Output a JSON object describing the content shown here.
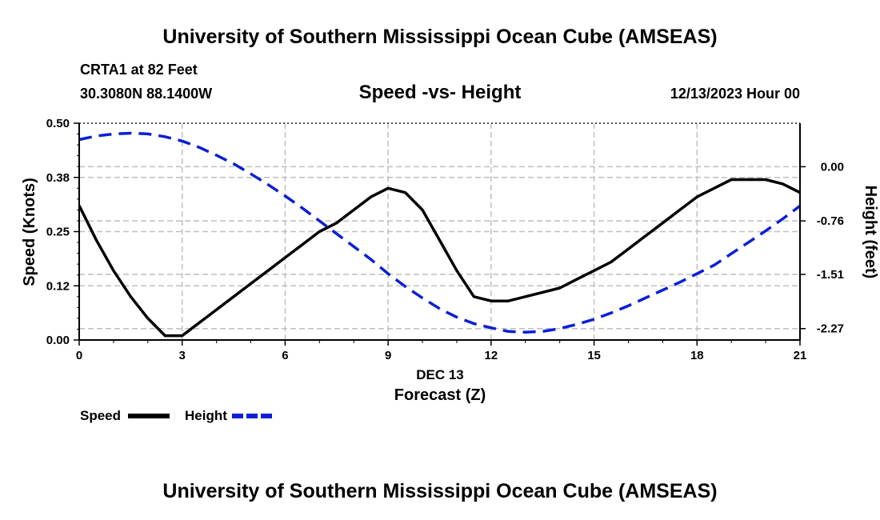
{
  "header": {
    "title": "University of Southern Mississippi Ocean Cube (AMSEAS)",
    "footer_title": "University of Southern Mississippi Ocean Cube (AMSEAS)",
    "station": "CRTA1 at 82 Feet",
    "coords": "30.3080N  88.1400W",
    "datetime": "12/13/2023 Hour 00"
  },
  "colors": {
    "speed": "#000000",
    "height": "#0a1fd6",
    "grid": "#bfbfbf"
  },
  "chart_data": {
    "type": "line",
    "title": "Speed -vs- Height",
    "xlabel": "Forecast (Z)",
    "xlabel_date": "DEC 13",
    "ylabel": "Speed (Knots)",
    "y2label": "Height (feet)",
    "xlim": [
      0,
      21
    ],
    "ylim": [
      0,
      0.5
    ],
    "y2lim": [
      -2.43,
      0.61
    ],
    "x_ticks": [
      0,
      3,
      6,
      9,
      12,
      15,
      18,
      21
    ],
    "x_tick_labels": [
      "0",
      "3",
      "6",
      "9",
      "12",
      "15",
      "18",
      "21"
    ],
    "y_ticks": [
      0,
      0.125,
      0.25,
      0.375,
      0.5
    ],
    "y_tick_labels": [
      "0.00",
      "0.12",
      "0.25",
      "0.38",
      "0.50"
    ],
    "y2_ticks": [
      0,
      -0.76,
      -1.51,
      -2.27
    ],
    "y2_tick_labels": [
      "0.00",
      "-0.76",
      "-1.51",
      "-2.27"
    ],
    "grid": true,
    "legend_position": "bottom-left",
    "series": [
      {
        "name": "Speed",
        "axis": "left",
        "style": "solid",
        "x": [
          0,
          0.5,
          1,
          1.5,
          2,
          2.5,
          3,
          3.5,
          4,
          4.5,
          5,
          5.5,
          6,
          6.5,
          7,
          7.5,
          8,
          8.5,
          9,
          9.5,
          10,
          10.5,
          11,
          11.5,
          12,
          12.5,
          13,
          13.5,
          14,
          14.5,
          15,
          15.5,
          16,
          16.5,
          17,
          17.5,
          18,
          18.5,
          19,
          19.5,
          20,
          20.5,
          21
        ],
        "values": [
          0.31,
          0.23,
          0.16,
          0.1,
          0.05,
          0.01,
          0.01,
          0.04,
          0.07,
          0.1,
          0.13,
          0.16,
          0.19,
          0.22,
          0.25,
          0.27,
          0.3,
          0.33,
          0.35,
          0.34,
          0.3,
          0.23,
          0.16,
          0.1,
          0.09,
          0.09,
          0.1,
          0.11,
          0.12,
          0.14,
          0.16,
          0.18,
          0.21,
          0.24,
          0.27,
          0.3,
          0.33,
          0.35,
          0.37,
          0.37,
          0.37,
          0.36,
          0.34
        ]
      },
      {
        "name": "Height",
        "axis": "right",
        "style": "dashed",
        "x": [
          0,
          0.5,
          1,
          1.5,
          2,
          2.5,
          3,
          3.5,
          4,
          4.5,
          5,
          5.5,
          6,
          6.5,
          7,
          7.5,
          8,
          8.5,
          9,
          9.5,
          10,
          10.5,
          11,
          11.5,
          12,
          12.5,
          13,
          13.5,
          14,
          14.5,
          15,
          15.5,
          16,
          16.5,
          17,
          17.5,
          18,
          18.5,
          19,
          19.5,
          20,
          20.5,
          21
        ],
        "values": [
          0.38,
          0.43,
          0.46,
          0.47,
          0.46,
          0.42,
          0.36,
          0.27,
          0.16,
          0.04,
          -0.1,
          -0.25,
          -0.41,
          -0.58,
          -0.76,
          -0.94,
          -1.12,
          -1.3,
          -1.5,
          -1.68,
          -1.84,
          -1.99,
          -2.11,
          -2.2,
          -2.26,
          -2.31,
          -2.32,
          -2.31,
          -2.27,
          -2.21,
          -2.14,
          -2.05,
          -1.95,
          -1.84,
          -1.73,
          -1.62,
          -1.5,
          -1.38,
          -1.22,
          -1.06,
          -0.9,
          -0.73,
          -0.55
        ]
      }
    ]
  }
}
